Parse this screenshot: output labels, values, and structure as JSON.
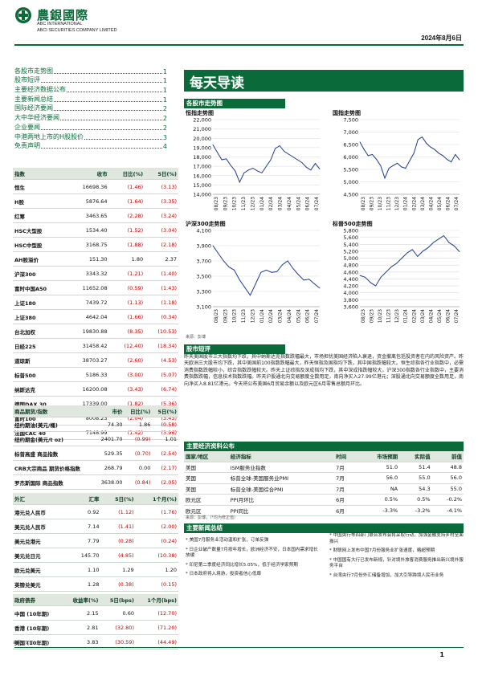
{
  "header": {
    "firm_cn": "農銀國際",
    "firm_en1": "ABC INTERNATIONAL",
    "firm_en2": "ABCI SECURITIES COMPANY LIMITED",
    "date": "2024年8月6日",
    "brand_color": "#0b6a3a"
  },
  "toc": [
    {
      "label": "各股市走势图",
      "page": "1"
    },
    {
      "label": "股市短评",
      "page": "1"
    },
    {
      "label": "主要经济数据公布",
      "page": "1"
    },
    {
      "label": "主要新闻总结",
      "page": "1"
    },
    {
      "label": "国际经济要闻",
      "page": "2"
    },
    {
      "label": "大中华经济要闻",
      "page": "2"
    },
    {
      "label": "企业要闻",
      "page": "2"
    },
    {
      "label": "中港两地上市的H股股价",
      "page": "3"
    },
    {
      "label": "免责声明",
      "page": "4"
    }
  ],
  "title": "每天导读",
  "index_table": {
    "headers": [
      "指数",
      "收市",
      "日比(%)",
      "5日(%)"
    ],
    "rows": [
      [
        "恒生",
        "16698.36",
        "(1.46)",
        "(3.13)"
      ],
      [
        "H股",
        "5876.64",
        "(1.64)",
        "(3.35)"
      ],
      [
        "红筹",
        "3463.65",
        "(2.28)",
        "(3.24)"
      ],
      [
        "HSC大型股",
        "1534.40",
        "(1.52)",
        "(3.04)"
      ],
      [
        "HSC中型股",
        "3168.75",
        "(1.88)",
        "(2.18)"
      ],
      [
        "AH股溢价",
        "151.30",
        "1.80",
        "2.37"
      ],
      [
        "沪深300",
        "3343.32",
        "(1.21)",
        "(1.40)"
      ],
      [
        "富时中国A50",
        "11652.08",
        "(0.59)",
        "(1.43)"
      ],
      [
        "上证180",
        "7439.72",
        "(1.13)",
        "(1.18)"
      ],
      [
        "上证380",
        "4642.04",
        "(1.66)",
        "(0.34)"
      ],
      [
        "台北加权",
        "19830.88",
        "(8.35)",
        "(10.53)"
      ],
      [
        "日经225",
        "31458.42",
        "(12.40)",
        "(18.34)"
      ],
      [
        "道琼斯",
        "38703.27",
        "(2.60)",
        "(4.53)"
      ],
      [
        "标普500",
        "5186.33",
        "(3.00)",
        "(5.07)"
      ],
      [
        "纳斯达克",
        "16200.08",
        "(3.43)",
        "(6.74)"
      ],
      [
        "德国DAX 30",
        "17339.00",
        "(1.82)",
        "(5.36)"
      ],
      [
        "富时100",
        "8008.23",
        "(2.04)",
        "(3.43)"
      ],
      [
        "法国CAC 40",
        "7148.99",
        "(1.42)",
        "(3.96)"
      ]
    ]
  },
  "commodity_table": {
    "headers": [
      "商品期货/指数",
      "市价",
      "日比(%)",
      "5日(%)"
    ],
    "rows": [
      [
        "纽约期油(美元/桶)",
        "74.30",
        "1.86",
        "(0.58)"
      ],
      [
        "纽约期金(美元/t oz)",
        "2401.70",
        "(0.99)",
        "1.01"
      ],
      [
        "标普高盛 商品指数",
        "529.35",
        "(0.70)",
        "(2.54)"
      ],
      [
        "CRB大宗商品 期货价格指数",
        "268.79",
        "0.00",
        "(2.17)"
      ],
      [
        "罗杰斯国际 商品指数",
        "3638.00",
        "(0.84)",
        "(2.05)"
      ]
    ]
  },
  "fx_table": {
    "headers": [
      "外汇",
      "汇率",
      "5日(%)",
      "1个月(%)"
    ],
    "rows": [
      [
        "港元兑人民币",
        "0.92",
        "(1.12)",
        "(1.76)"
      ],
      [
        "美元兑人民币",
        "7.14",
        "(1.41)",
        "(2.00)"
      ],
      [
        "美元兑港元",
        "7.79",
        "(0.28)",
        "(0.24)"
      ],
      [
        "美元兑日元",
        "145.70",
        "(4.85)",
        "(10.38)"
      ],
      [
        "欧元兑美元",
        "1.10",
        "1.29",
        "1.20"
      ],
      [
        "英镑兑美元",
        "1.28",
        "(0.38)",
        "(0.15)"
      ],
      [
        "澳元兑美元",
        "0.65",
        "(0.08)",
        "(3.03)"
      ]
    ]
  },
  "bond_table": {
    "headers": [
      "政府债券",
      "收益率(%)",
      "5日(bps)",
      "1个月(bps)"
    ],
    "rows": [
      [
        "中国 (10年期)",
        "2.15",
        "0.60",
        "(12.70)"
      ],
      [
        "香港 (10年期)",
        "2.81",
        "(32.80)",
        "(71.20)"
      ],
      [
        "美国 (10年期)",
        "3.83",
        "(30.59)",
        "(44.49)"
      ]
    ],
    "source": "来源：彭博"
  },
  "market_charts": {
    "section_title": "各股市走势图",
    "source": "来源：彭博",
    "x_labels": [
      "08/23",
      "09/23",
      "10/23",
      "11/23",
      "12/23",
      "01/24",
      "02/24",
      "03/24",
      "04/24",
      "05/24",
      "06/24",
      "07/24"
    ],
    "colors": {
      "line": "#1f3b8f",
      "grid": "#d9d9d9"
    }
  },
  "chart_data": [
    {
      "type": "line",
      "title": "恒指走势图",
      "xlabels": [
        "08/23",
        "09/23",
        "10/23",
        "11/23",
        "12/23",
        "01/24",
        "02/24",
        "03/24",
        "04/24",
        "05/24",
        "06/24",
        "07/24"
      ],
      "yticks": [
        "22,000",
        "21,000",
        "20,000",
        "19,000",
        "18,000",
        "17,000",
        "16,000",
        "15,000",
        "14,000"
      ],
      "ylim": [
        14000,
        22000
      ],
      "values": [
        19300,
        18500,
        17700,
        17800,
        17100,
        16500,
        15300,
        16300,
        16600,
        16800,
        16500,
        16300,
        17000,
        17700,
        18900,
        19200,
        18600,
        18300,
        18000,
        17700,
        17400,
        16900,
        16600,
        17300,
        16700
      ]
    },
    {
      "type": "line",
      "title": "国指走势图",
      "xlabels": [
        "08/23",
        "09/23",
        "10/23",
        "11/23",
        "12/23",
        "01/24",
        "02/24",
        "03/24",
        "04/24",
        "05/24",
        "06/24",
        "07/24"
      ],
      "yticks": [
        "7,500",
        "7,000",
        "6,500",
        "6,000",
        "5,500",
        "5,000",
        "4,500"
      ],
      "ylim": [
        4500,
        7500
      ],
      "values": [
        6600,
        6300,
        6050,
        6100,
        5900,
        5650,
        5150,
        5550,
        5650,
        5750,
        5600,
        5550,
        5850,
        6150,
        6700,
        6800,
        6550,
        6400,
        6300,
        6150,
        6050,
        5900,
        5800,
        6100,
        5880
      ]
    },
    {
      "type": "line",
      "title": "沪深300走势图",
      "xlabels": [
        "08/23",
        "09/23",
        "10/23",
        "11/23",
        "12/23",
        "01/24",
        "02/24",
        "03/24",
        "04/24",
        "05/24",
        "06/24",
        "07/24"
      ],
      "yticks": [
        "4,100",
        "3,900",
        "3,700",
        "3,500",
        "3,300",
        "3,100"
      ],
      "ylim": [
        3100,
        4100
      ],
      "values": [
        3900,
        3800,
        3700,
        3620,
        3580,
        3450,
        3350,
        3250,
        3400,
        3550,
        3580,
        3550,
        3560,
        3650,
        3700,
        3600,
        3520,
        3450,
        3460,
        3400,
        3343
      ]
    },
    {
      "type": "line",
      "title": "标普500走势图",
      "xlabels": [
        "08/23",
        "09/23",
        "10/23",
        "11/23",
        "12/23",
        "01/24",
        "02/24",
        "03/24",
        "04/24",
        "05/24",
        "06/24",
        "07/24"
      ],
      "yticks": [
        "5,800",
        "5,600",
        "5,400",
        "5,200",
        "5,000",
        "4,800",
        "4,600",
        "4,400",
        "4,200",
        "4,000",
        "3,800",
        "3,600"
      ],
      "ylim": [
        3600,
        5800
      ],
      "values": [
        4500,
        4450,
        4300,
        4200,
        4450,
        4600,
        4750,
        4850,
        5000,
        5150,
        5250,
        5050,
        5200,
        5300,
        5450,
        5550,
        5650,
        5450,
        5350,
        5186
      ]
    }
  ],
  "market_summary": {
    "section_title": "股市短评",
    "text": "昨天美国股市三大指数均下跌，其中纳斯达克指数跌幅最大，市场担忧美国经济陷入衰退，资金撤离包括投资者在内的风险资产。昨天欧洲三大股市均下跌，其中美国前100指数跌幅最大，昨天恒指及国指均下跌，其中国指跌幅较大。恒生综指各行业指数中，必需消费指数跌幅较小，综合指数跌幅较大。昨天上证综指及深成指均下跌，其中深成指跌幅较大，沪深300指数各行业指数中，主要消费指数跌幅，信息技术指数跌幅。昨天沪股通北向交易额度全数用足，南向净买入27.99亿港元；深股通北向交易额度全数用足，南向净买入8.81亿港元。今天将公布美国6月贸易余额以及欧元区6月零售总额月环比。"
  },
  "econ_table": {
    "section_title": "主要经济资料公布",
    "headers": [
      "国家/地区",
      "经济指标",
      "时间",
      "市场预期",
      "实际值",
      "前值"
    ],
    "rows": [
      [
        "美国",
        "ISM服务业指数",
        "7月",
        "51.0",
        "51.4",
        "48.8"
      ],
      [
        "美国",
        "标普全球-美国服务业PMI",
        "7月",
        "56.0",
        "55.0",
        "56.0"
      ],
      [
        "美国",
        "标普全球-美国综合PMI",
        "7月",
        "NA",
        "54.3",
        "55.0"
      ],
      [
        "欧元区",
        "PPI月环比",
        "6月",
        "0.5%",
        "0.5%",
        "-0.2%"
      ],
      [
        "欧元区",
        "PPI同比",
        "6月",
        "-3.3%",
        "-3.2%",
        "-4.1%"
      ]
    ],
    "source": "来源：彭博，（*均为修正值）"
  },
  "news": {
    "section_title": "主要新闻总结",
    "left": [
      "美国7月服务业活动温和扩张，订单反弹",
      "日企业破产数量7月按年增长，欧洲经济不安，日本国内需求增长放缓",
      "印尼第二季度经济同比增长5.05%，低于经济学家预期",
      "日本政府将入境游，投资者信心低靡"
    ],
    "right": [
      "中国央行等四部门联合发布会将采取行动，加强金融支持乡村全面振兴",
      "财联网上发布中国7月份服务业扩张速度，略超预期",
      "中国国有大行已发布新规，针对境外旅客消费服务推出新兴境外服务平台",
      "台湾央行7月份外汇储备增加，加大引导跨境人民币业务"
    ]
  },
  "footer": {
    "page": "1"
  }
}
